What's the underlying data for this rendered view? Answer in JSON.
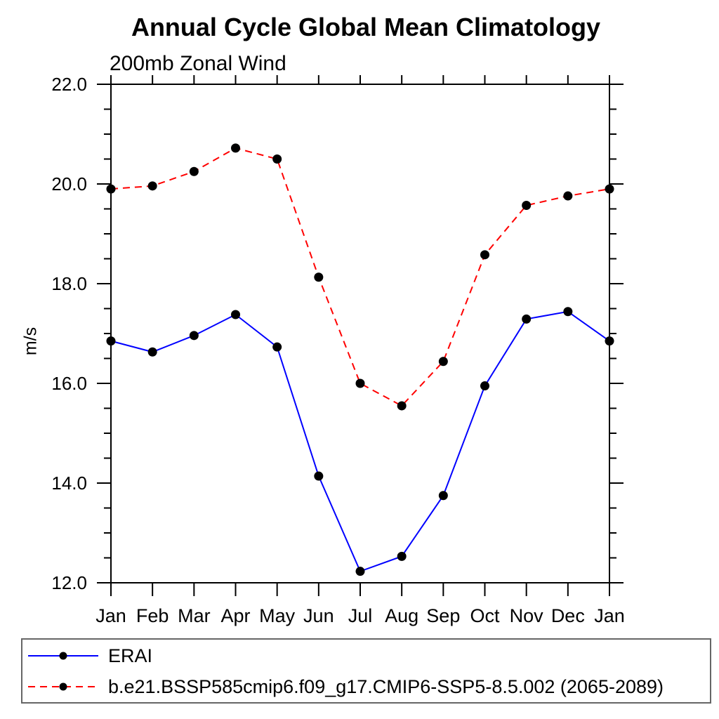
{
  "title": "Annual Cycle Global Mean Climatology",
  "subtitle": "200mb Zonal Wind",
  "ylabel": "m/s",
  "colors": {
    "erai_line": "#0000ff",
    "model_line": "#ff0000",
    "marker": "#000000",
    "axis": "#000000",
    "legend_border": "#666666"
  },
  "chart_data": {
    "type": "line",
    "title": "Annual Cycle Global Mean Climatology",
    "subtitle": "200mb Zonal Wind",
    "xlabel": "",
    "ylabel": "m/s",
    "categories": [
      "Jan",
      "Feb",
      "Mar",
      "Apr",
      "May",
      "Jun",
      "Jul",
      "Aug",
      "Sep",
      "Oct",
      "Nov",
      "Dec",
      "Jan"
    ],
    "series": [
      {
        "name": "ERAI",
        "color": "#0000ff",
        "style": "solid",
        "marker": "filled-circle",
        "values": [
          16.85,
          16.63,
          16.96,
          17.38,
          16.73,
          14.14,
          12.23,
          12.53,
          13.75,
          15.95,
          17.29,
          17.44,
          16.85
        ]
      },
      {
        "name": "b.e21.BSSP585cmip6.f09_g17.CMIP6-SSP5-8.5.002 (2065-2089)",
        "color": "#ff0000",
        "style": "dashed",
        "marker": "filled-circle",
        "values": [
          19.9,
          19.96,
          20.25,
          20.72,
          20.5,
          18.13,
          16.0,
          15.55,
          16.44,
          18.58,
          19.57,
          19.76,
          19.9
        ]
      }
    ],
    "ylim": [
      12.0,
      22.0
    ],
    "ytick_major": [
      12.0,
      14.0,
      16.0,
      18.0,
      20.0,
      22.0
    ],
    "ytick_labels": [
      "12.0",
      "14.0",
      "16.0",
      "18.0",
      "20.0",
      "22.0"
    ],
    "ytick_minor_step": 0.5,
    "grid": false,
    "legend_position": "bottom"
  }
}
